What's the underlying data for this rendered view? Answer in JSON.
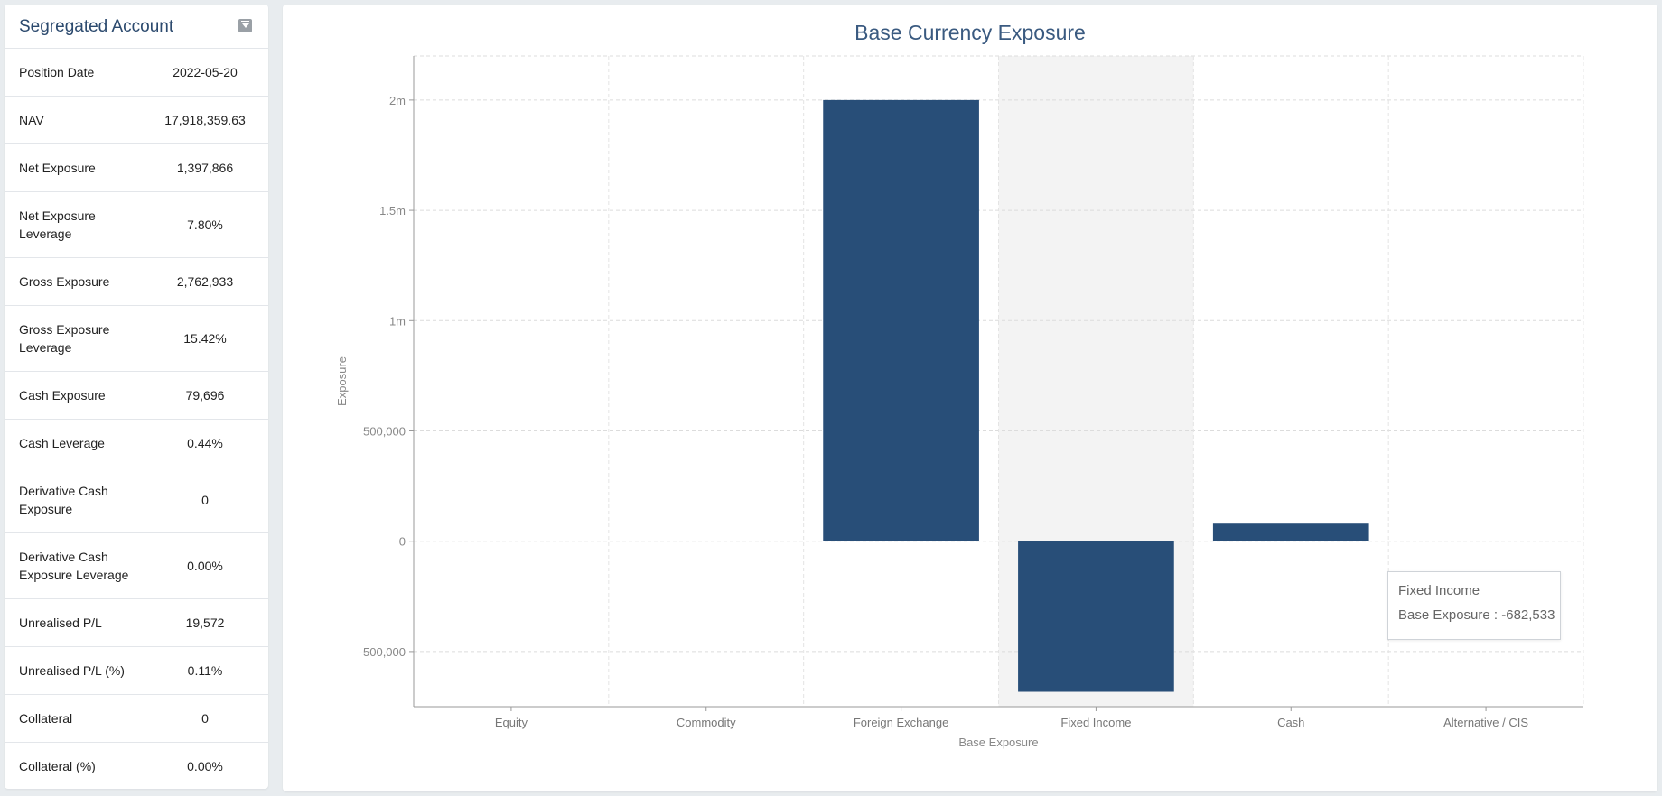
{
  "panel": {
    "title": "Segregated Account",
    "metrics": [
      {
        "label": "Position Date",
        "value": "2022-05-20"
      },
      {
        "label": "NAV",
        "value": "17,918,359.63"
      },
      {
        "label": "Net Exposure",
        "value": "1,397,866"
      },
      {
        "label": "Net Exposure Leverage",
        "value": "7.80%"
      },
      {
        "label": "Gross Exposure",
        "value": "2,762,933"
      },
      {
        "label": "Gross Exposure Leverage",
        "value": "15.42%"
      },
      {
        "label": "Cash Exposure",
        "value": "79,696"
      },
      {
        "label": "Cash Leverage",
        "value": "0.44%"
      },
      {
        "label": "Derivative Cash Exposure",
        "value": "0"
      },
      {
        "label": "Derivative Cash Exposure Leverage",
        "value": "0.00%"
      },
      {
        "label": "Unrealised P/L",
        "value": "19,572"
      },
      {
        "label": "Unrealised P/L (%)",
        "value": "0.11%"
      },
      {
        "label": "Collateral",
        "value": "0"
      },
      {
        "label": "Collateral (%)",
        "value": "0.00%"
      }
    ]
  },
  "chart_data": {
    "type": "bar",
    "title": "Base Currency Exposure",
    "xlabel": "Base Exposure",
    "ylabel": "Exposure",
    "categories": [
      "Equity",
      "Commodity",
      "Foreign Exchange",
      "Fixed Income",
      "Cash",
      "Alternative / CIS"
    ],
    "series": [
      {
        "name": "Base Exposure",
        "values": [
          0,
          0,
          2000000,
          -682533,
          79696,
          0
        ]
      }
    ],
    "ylim": [
      -750000,
      2200000
    ],
    "yticks": [
      -500000,
      0,
      500000,
      1000000,
      1500000,
      2000000
    ],
    "ytick_labels": [
      "-500,000",
      "0",
      "500,000",
      "1m",
      "1.5m",
      "2m"
    ],
    "highlighted_category": "Fixed Income",
    "grid": true,
    "bar_color": "#284e78"
  },
  "tooltip": {
    "title": "Fixed Income",
    "line": "Base Exposure : -682,533"
  }
}
